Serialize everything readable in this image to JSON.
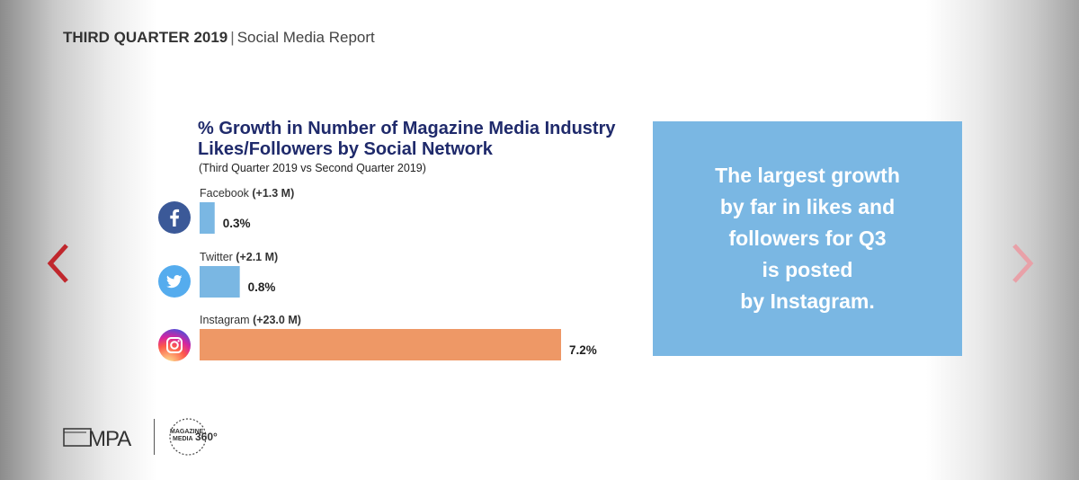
{
  "header": {
    "quarter": "THIRD QUARTER 2019",
    "separator": "|",
    "report": "Social Media Report"
  },
  "chart_data": {
    "type": "bar",
    "orientation": "horizontal",
    "title": "% Growth in Number of Magazine Media Industry Likes/Followers by Social Network",
    "subtitle": "(Third Quarter 2019 vs Second Quarter 2019)",
    "categories": [
      "Facebook",
      "Twitter",
      "Instagram"
    ],
    "change_labels": [
      "(+1.3 M)",
      "(+2.1 M)",
      "(+23.0 M)"
    ],
    "values": [
      0.3,
      0.8,
      7.2
    ],
    "value_labels": [
      "0.3%",
      "0.8%",
      "7.2%"
    ],
    "unit": "%",
    "colors": [
      "#7ab7e3",
      "#7ab7e3",
      "#ee9866"
    ],
    "xlim": [
      0,
      7.2
    ],
    "grid": false,
    "legend": "none"
  },
  "icons": {
    "facebook": {
      "name": "facebook-icon",
      "color": "#3b5998"
    },
    "twitter": {
      "name": "twitter-icon",
      "color": "#55acee"
    },
    "instagram": {
      "name": "instagram-icon",
      "color": "#d62976"
    }
  },
  "callout": {
    "lines": [
      "The largest growth",
      "by far in likes and",
      "followers for Q3",
      "is posted",
      "by Instagram."
    ],
    "color": "#7ab7e3"
  },
  "footer": {
    "mpa_logo": "MPA",
    "magazine_media_logo": "MAGAZINE MEDIA 360°"
  },
  "nav": {
    "prev_color": "#c0272d",
    "next_color": "#e8a1a8"
  }
}
